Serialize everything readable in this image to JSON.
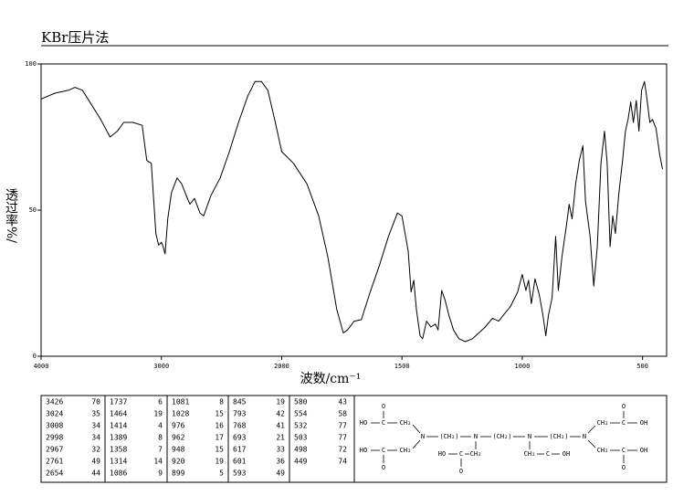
{
  "header": {
    "title": "KBr压片法"
  },
  "chart_data": {
    "type": "line",
    "x": [
      4000,
      3885,
      3771,
      3718,
      3656,
      3580,
      3504,
      3427,
      3366,
      3313,
      3237,
      3160,
      3122,
      3084,
      3046,
      3023,
      3000,
      2985,
      2969,
      2947,
      2916,
      2870,
      2832,
      2794,
      2763,
      2725,
      2679,
      2649,
      2588,
      2511,
      2435,
      2359,
      2282,
      2221,
      2168,
      2115,
      2053,
      2000,
      1951,
      1895,
      1846,
      1808,
      1771,
      1744,
      1726,
      1699,
      1669,
      1632,
      1594,
      1556,
      1519,
      1500,
      1474,
      1462,
      1451,
      1440,
      1425,
      1414,
      1398,
      1380,
      1361,
      1350,
      1335,
      1320,
      1305,
      1286,
      1263,
      1237,
      1207,
      1180,
      1154,
      1124,
      1098,
      1079,
      1049,
      1019,
      1000,
      985,
      974,
      962,
      947,
      929,
      914,
      902,
      891,
      876,
      861,
      850,
      835,
      816,
      805,
      793,
      778,
      763,
      748,
      737,
      718,
      703,
      688,
      673,
      658,
      647,
      635,
      624,
      613,
      598,
      583,
      571,
      560,
      549,
      538,
      526,
      515,
      504,
      492,
      481,
      470,
      459,
      444,
      429,
      417
    ],
    "values": [
      88,
      90,
      91,
      92,
      91,
      86,
      81,
      75,
      77,
      80,
      80,
      79,
      67,
      66,
      42,
      38,
      39,
      37.5,
      35,
      47,
      56,
      61,
      59,
      55,
      52,
      54,
      49,
      48,
      55,
      61,
      70,
      80,
      89,
      94,
      94,
      91,
      80,
      70,
      66,
      59,
      48,
      34,
      16,
      8,
      9,
      12,
      12.5,
      22,
      31,
      41,
      49,
      48,
      36,
      22,
      26,
      16,
      7,
      6,
      12,
      10,
      11,
      9,
      22.5,
      19,
      14,
      9,
      6,
      5,
      6,
      8,
      10,
      13,
      12,
      14,
      17,
      22,
      28,
      22.5,
      26,
      18,
      26.5,
      21,
      14,
      7,
      14,
      20,
      41,
      22.5,
      34,
      45,
      52,
      47,
      59,
      67,
      72,
      53,
      41,
      24,
      37.5,
      66,
      77,
      66,
      37.5,
      48,
      42,
      56,
      67,
      77,
      81,
      87,
      80,
      87.5,
      77,
      91,
      94,
      87.5,
      80,
      81,
      78,
      69,
      64
    ],
    "color": "#000000",
    "xlim": [
      4000,
      400
    ],
    "ylim": [
      0,
      100
    ],
    "xticks": [
      4000,
      3000,
      2000,
      1500,
      1000,
      500
    ],
    "yticks": [
      0,
      50,
      100
    ],
    "x_label": "波数/cm⁻¹",
    "y_label": "透过率%/"
  },
  "table": {
    "rows": [
      [
        3426,
        70,
        1737,
        6,
        1081,
        8,
        845,
        19,
        580,
        43
      ],
      [
        3024,
        35,
        1464,
        19,
        1028,
        15,
        793,
        42,
        554,
        58
      ],
      [
        3008,
        34,
        1414,
        4,
        976,
        16,
        768,
        41,
        532,
        77
      ],
      [
        2998,
        34,
        1389,
        8,
        962,
        17,
        693,
        21,
        503,
        77
      ],
      [
        2967,
        32,
        1358,
        7,
        948,
        15,
        617,
        33,
        498,
        72
      ],
      [
        2761,
        49,
        1314,
        14,
        920,
        19,
        601,
        36,
        449,
        74
      ],
      [
        2654,
        44,
        1086,
        9,
        899,
        5,
        593,
        49
      ]
    ]
  },
  "structure": {
    "labels": [
      "O",
      "HO",
      "C",
      "CH₂",
      "N",
      "HO",
      "C",
      "CH₂",
      "O",
      "(CH₂)",
      "N",
      "CH₂",
      "HO",
      "C",
      "O",
      "(CH₂)",
      "N",
      "CH₂",
      "C",
      "OH",
      "(CH₂)",
      "N",
      "O",
      "CH₂",
      "C",
      "OH",
      "CH₂",
      "C",
      "OH",
      "O"
    ]
  }
}
